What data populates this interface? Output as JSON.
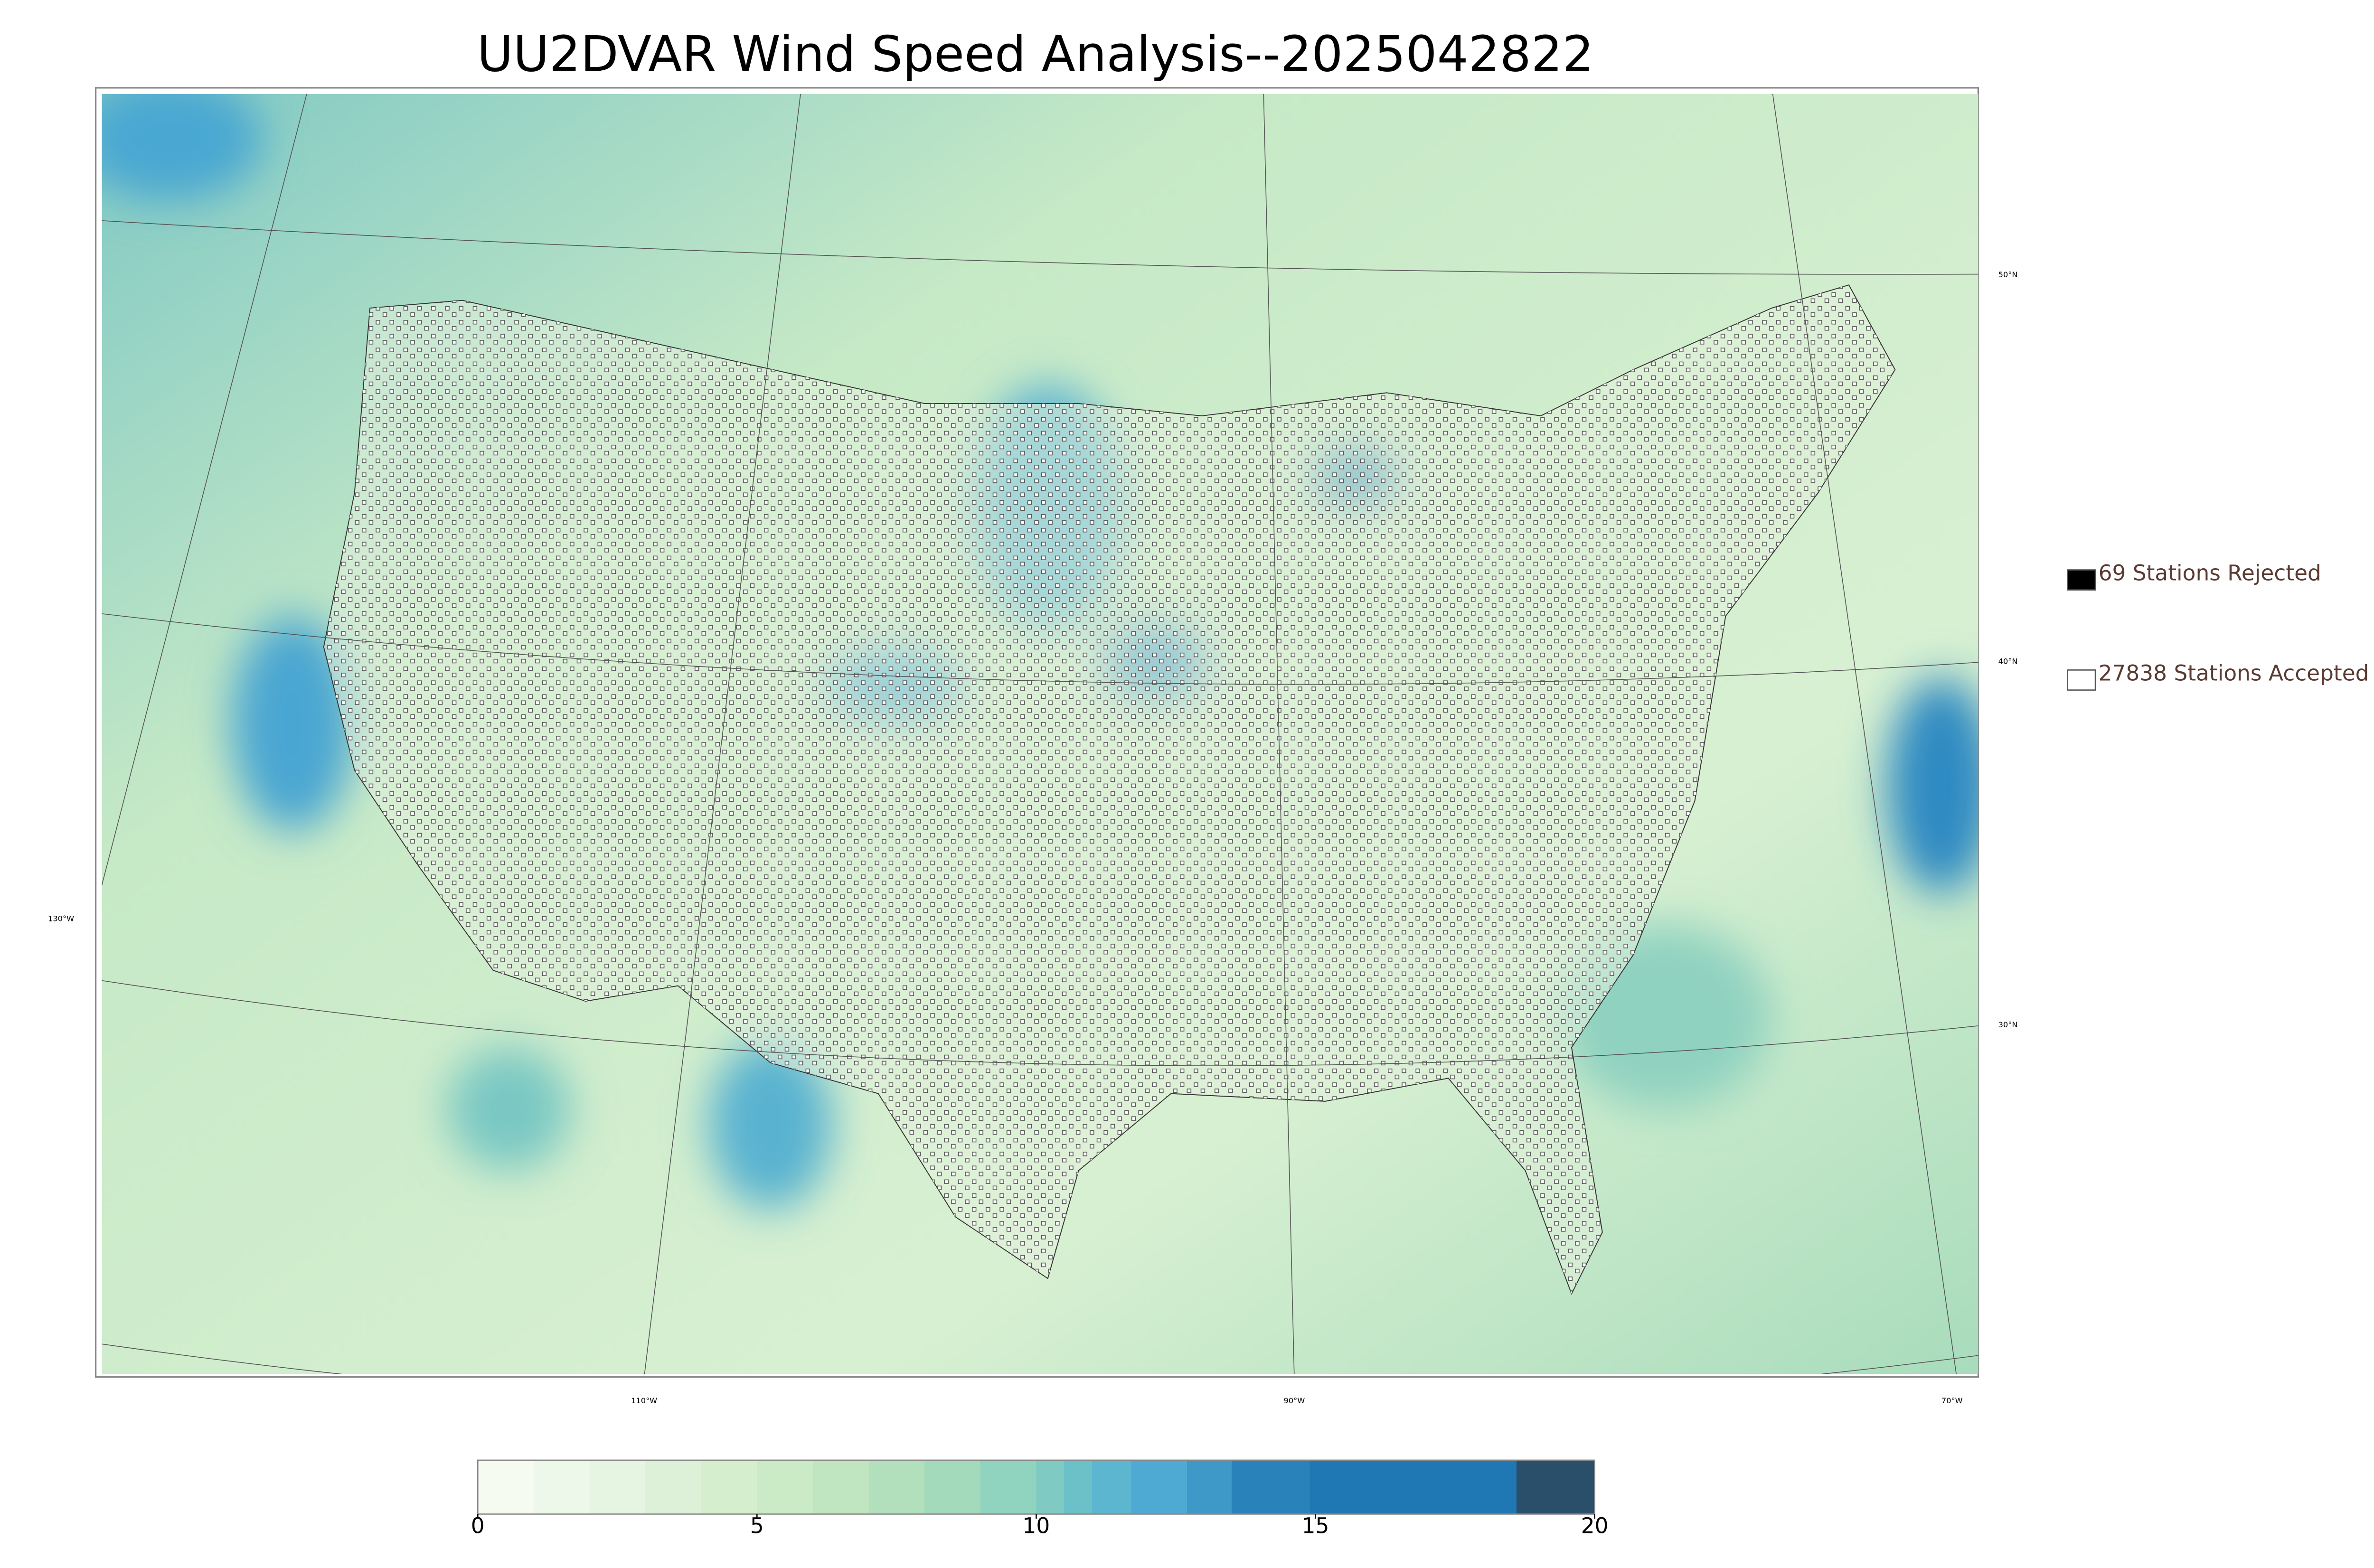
{
  "title": "UU2DVAR Wind Speed Analysis--2025042822",
  "legend": [
    {
      "label": "69 Stations Rejected",
      "color": "#000000"
    },
    {
      "label": "27838 Stations Accepted",
      "color": "#ffffff"
    }
  ],
  "graticule_labels": {
    "lat": [
      "50°N",
      "40°N",
      "30°N"
    ],
    "lon": [
      "130°W",
      "110°W",
      "90°W",
      "70°W"
    ]
  },
  "colorbar": {
    "levels": [
      0,
      1,
      2,
      3,
      4,
      5,
      6,
      7,
      8,
      9,
      10,
      10.5,
      11,
      11.7,
      12.7,
      13.5,
      14.9,
      18.6,
      20
    ],
    "colors": [
      "#f5fbf0",
      "#eef8ea",
      "#e6f5e2",
      "#ddf1d8",
      "#d4eece",
      "#cbebc6",
      "#bfe6c0",
      "#b2e0bd",
      "#a3dabc",
      "#90d3be",
      "#7fcbc3",
      "#6cc1c9",
      "#5cb6d0",
      "#4eaad3",
      "#3f99c8",
      "#2a82bb",
      "#1f78b4",
      "#2a4f6b"
    ],
    "ticks": [
      0,
      5,
      10,
      15,
      20
    ]
  }
}
